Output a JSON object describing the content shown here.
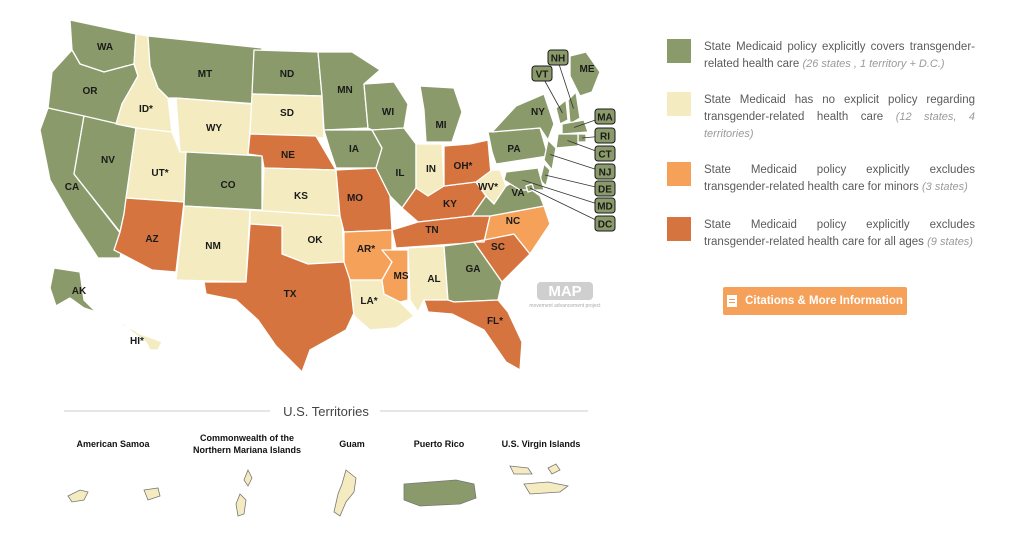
{
  "colors": {
    "covers": "#8b9a6b",
    "no_policy": "#f4ecc0",
    "excludes_minors": "#f5a15a",
    "excludes_all": "#d6743f",
    "button": "#f5a15a"
  },
  "legend": [
    {
      "key": "covers",
      "text": "State Medicaid policy explicitly covers transgender-related health care",
      "count": "(26 states , 1 territory + D.C.)"
    },
    {
      "key": "no_policy",
      "text": "State Medicaid has no explicit policy regarding transgender-related health care",
      "count": "(12 states, 4 territories)"
    },
    {
      "key": "excludes_minors",
      "text": "State Medicaid policy explicitly excludes transgender-related health care for minors",
      "count": "(3 states)"
    },
    {
      "key": "excludes_all",
      "text": "State Medicaid policy explicitly excludes transgender-related health care for all ages",
      "count": "(9 states)"
    }
  ],
  "citations_button": "Citations & More Information",
  "watermark": {
    "logo": "MAP",
    "tagline": "movement advancement project"
  },
  "territories_title": "U.S. Territories",
  "territories": [
    {
      "name": "American Samoa",
      "key": "no_policy"
    },
    {
      "name": "Commonwealth of the",
      "name2": "Northern Mariana Islands",
      "key": "no_policy"
    },
    {
      "name": "Guam",
      "key": "no_policy"
    },
    {
      "name": "Puerto Rico",
      "key": "covers"
    },
    {
      "name": "U.S. Virgin Islands",
      "key": "no_policy"
    }
  ],
  "states": [
    {
      "abbr": "WA",
      "key": "covers"
    },
    {
      "abbr": "OR",
      "key": "covers"
    },
    {
      "abbr": "CA",
      "key": "covers"
    },
    {
      "abbr": "NV",
      "key": "covers"
    },
    {
      "abbr": "ID*",
      "key": "no_policy"
    },
    {
      "abbr": "MT",
      "key": "covers"
    },
    {
      "abbr": "WY",
      "key": "no_policy"
    },
    {
      "abbr": "UT*",
      "key": "no_policy"
    },
    {
      "abbr": "AZ",
      "key": "excludes_all"
    },
    {
      "abbr": "CO",
      "key": "covers"
    },
    {
      "abbr": "NM",
      "key": "no_policy"
    },
    {
      "abbr": "ND",
      "key": "covers"
    },
    {
      "abbr": "SD",
      "key": "no_policy"
    },
    {
      "abbr": "NE",
      "key": "excludes_all"
    },
    {
      "abbr": "KS",
      "key": "no_policy"
    },
    {
      "abbr": "OK",
      "key": "no_policy"
    },
    {
      "abbr": "TX",
      "key": "excludes_all"
    },
    {
      "abbr": "MN",
      "key": "covers"
    },
    {
      "abbr": "IA",
      "key": "covers"
    },
    {
      "abbr": "MO",
      "key": "excludes_all"
    },
    {
      "abbr": "AR*",
      "key": "excludes_minors"
    },
    {
      "abbr": "LA*",
      "key": "no_policy"
    },
    {
      "abbr": "WI",
      "key": "covers"
    },
    {
      "abbr": "IL",
      "key": "covers"
    },
    {
      "abbr": "MS",
      "key": "excludes_minors"
    },
    {
      "abbr": "MI",
      "key": "covers"
    },
    {
      "abbr": "IN",
      "key": "no_policy"
    },
    {
      "abbr": "KY",
      "key": "excludes_all"
    },
    {
      "abbr": "TN",
      "key": "excludes_all"
    },
    {
      "abbr": "AL",
      "key": "no_policy"
    },
    {
      "abbr": "OH*",
      "key": "excludes_all"
    },
    {
      "abbr": "GA",
      "key": "covers"
    },
    {
      "abbr": "FL*",
      "key": "excludes_all"
    },
    {
      "abbr": "SC",
      "key": "excludes_all"
    },
    {
      "abbr": "NC",
      "key": "excludes_minors"
    },
    {
      "abbr": "WV*",
      "key": "no_policy"
    },
    {
      "abbr": "VA",
      "key": "covers"
    },
    {
      "abbr": "PA",
      "key": "covers"
    },
    {
      "abbr": "NY",
      "key": "covers"
    },
    {
      "abbr": "ME",
      "key": "covers"
    },
    {
      "abbr": "AK",
      "key": "covers"
    },
    {
      "abbr": "HI*",
      "key": "no_policy"
    },
    {
      "abbr": "VT",
      "key": "covers"
    },
    {
      "abbr": "NH",
      "key": "covers"
    },
    {
      "abbr": "MA",
      "key": "covers"
    },
    {
      "abbr": "RI",
      "key": "covers"
    },
    {
      "abbr": "CT",
      "key": "covers"
    },
    {
      "abbr": "NJ",
      "key": "covers"
    },
    {
      "abbr": "DE",
      "key": "covers"
    },
    {
      "abbr": "MD",
      "key": "covers"
    },
    {
      "abbr": "DC",
      "key": "covers"
    }
  ]
}
